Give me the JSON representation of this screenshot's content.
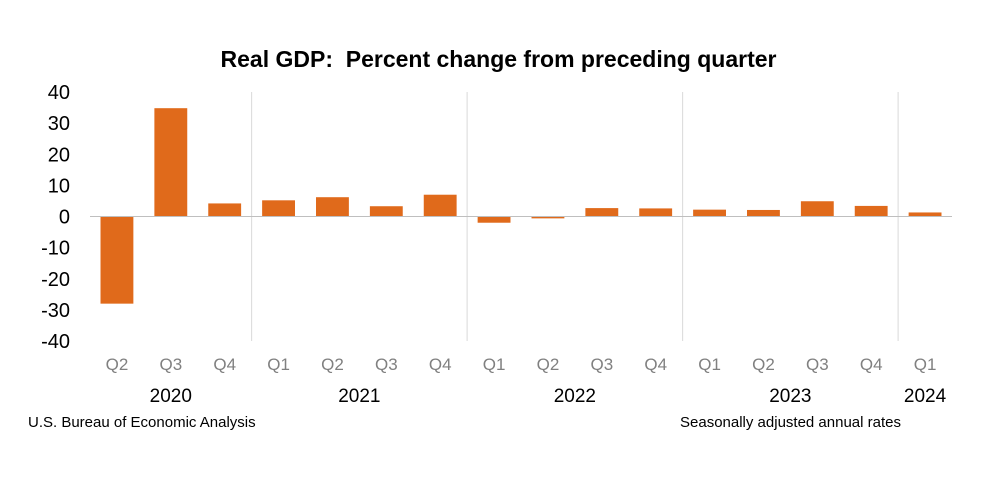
{
  "chart_data": {
    "type": "bar",
    "title": "Real GDP:  Percent change from preceding quarter",
    "categories": [
      "Q2",
      "Q3",
      "Q4",
      "Q1",
      "Q2",
      "Q3",
      "Q4",
      "Q1",
      "Q2",
      "Q3",
      "Q4",
      "Q1",
      "Q2",
      "Q3",
      "Q4",
      "Q1"
    ],
    "years": [
      {
        "label": "2020",
        "count": 3
      },
      {
        "label": "2021",
        "count": 4
      },
      {
        "label": "2022",
        "count": 4
      },
      {
        "label": "2023",
        "count": 4
      },
      {
        "label": "2024",
        "count": 1
      }
    ],
    "values": [
      -28.0,
      34.8,
      4.2,
      5.2,
      6.2,
      3.3,
      7.0,
      -2.0,
      -0.6,
      2.7,
      2.6,
      2.2,
      2.1,
      4.9,
      3.4,
      1.3
    ],
    "yticks": [
      "40",
      "30",
      "20",
      "10",
      "0",
      "-10",
      "-20",
      "-30",
      "-40"
    ],
    "ylim": [
      -40,
      40
    ],
    "xlabel": "",
    "ylabel": "",
    "grid": false,
    "bar_color": "#e06a1b",
    "separator_color": "#d9d9d9"
  },
  "footer": {
    "source": "U.S. Bureau of Economic Analysis",
    "note": "Seasonally adjusted annual rates"
  }
}
